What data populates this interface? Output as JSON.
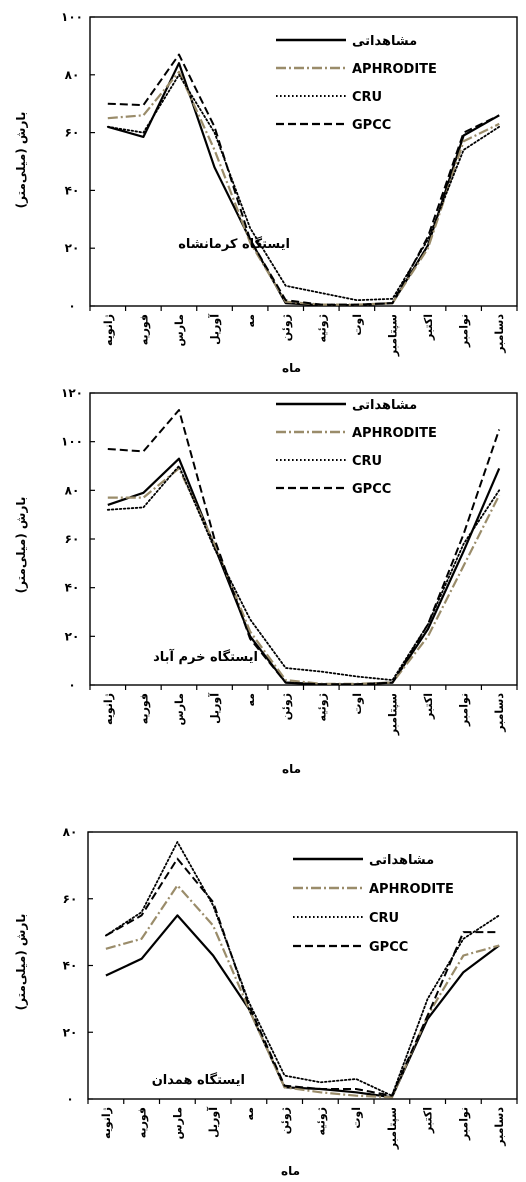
{
  "chart_data": [
    {
      "type": "line",
      "title": "ایستگاه کرمانشاه",
      "xlabel": "ماه",
      "ylabel": "بارش (میلی‌متر)",
      "categories": [
        "ژانویه",
        "فوریه",
        "مارس",
        "آوریل",
        "مه",
        "ژوئن",
        "ژوئیه",
        "اوت",
        "سپتامبر",
        "اکتبر",
        "نوامبر",
        "دسامبر"
      ],
      "ylim": [
        0,
        100
      ],
      "yticks": [
        0,
        20,
        40,
        60,
        80,
        100
      ],
      "ytick_labels": [
        "۰",
        "۲۰",
        "۴۰",
        "۶۰",
        "۸۰",
        "۱۰۰"
      ],
      "legend_position": "top-right",
      "series": [
        {
          "name": "مشاهداتی",
          "style": "solid",
          "color": "#000000",
          "values": [
            62,
            58.5,
            84,
            48,
            23,
            1,
            0.3,
            0.3,
            1,
            21,
            59,
            66
          ]
        },
        {
          "name": "APHRODITE",
          "style": "dashdot",
          "color": "#9a8c6a",
          "values": [
            65,
            66,
            81,
            54,
            22,
            1.5,
            0.5,
            0.5,
            1,
            20,
            57,
            63
          ]
        },
        {
          "name": "CRU",
          "style": "dotted",
          "color": "#000000",
          "values": [
            62,
            60,
            80,
            60,
            27,
            7,
            4.5,
            2,
            2.5,
            23,
            54,
            62
          ]
        },
        {
          "name": "GPCC",
          "style": "dashed",
          "color": "#000000",
          "values": [
            70,
            69.5,
            87,
            62,
            23,
            2,
            0.5,
            0.5,
            1,
            24,
            60,
            66
          ]
        }
      ]
    },
    {
      "type": "line",
      "title": "ایستگاه خرم آباد",
      "xlabel": "ماه",
      "ylabel": "بارش (میلی‌متر)",
      "categories": [
        "ژانویه",
        "فوریه",
        "مارس",
        "آوریل",
        "مه",
        "ژوئن",
        "ژوئیه",
        "اوت",
        "سپتامبر",
        "اکتبر",
        "نوامبر",
        "دسامبر"
      ],
      "ylim": [
        0,
        120
      ],
      "yticks": [
        0,
        20,
        40,
        60,
        80,
        100,
        120
      ],
      "ytick_labels": [
        "۰",
        "۲۰",
        "۴۰",
        "۶۰",
        "۸۰",
        "۱۰۰",
        "۱۲۰"
      ],
      "legend_position": "top-right",
      "series": [
        {
          "name": "مشاهداتی",
          "style": "solid",
          "color": "#000000",
          "values": [
            74,
            79,
            93,
            57,
            20,
            1,
            0.3,
            0.3,
            1,
            23,
            55,
            89
          ]
        },
        {
          "name": "APHRODITE",
          "style": "dashdot",
          "color": "#9a8c6a",
          "values": [
            77,
            77,
            89,
            58,
            22,
            2,
            0.5,
            0.5,
            1,
            20,
            49,
            78
          ]
        },
        {
          "name": "CRU",
          "style": "dotted",
          "color": "#000000",
          "values": [
            72,
            73,
            90,
            56,
            27,
            7,
            5.5,
            3.5,
            2,
            25,
            58,
            80
          ]
        },
        {
          "name": "GPCC",
          "style": "dashed",
          "color": "#000000",
          "values": [
            97,
            96,
            113,
            60,
            19,
            1,
            0.3,
            0.3,
            1,
            25,
            62,
            105
          ]
        }
      ]
    },
    {
      "type": "line",
      "title": "ایستگاه همدان",
      "xlabel": "ماه",
      "ylabel": "بارش (میلی‌متر)",
      "categories": [
        "ژانویه",
        "فوریه",
        "مارس",
        "آوریل",
        "مه",
        "ژوئن",
        "ژوئیه",
        "اوت",
        "سپتامبر",
        "اکتبر",
        "نوامبر",
        "دسامبر"
      ],
      "ylim": [
        0,
        80
      ],
      "yticks": [
        0,
        20,
        40,
        60,
        80
      ],
      "ytick_labels": [
        "۰",
        "۲۰",
        "۴۰",
        "۶۰",
        "۸۰"
      ],
      "legend_position": "top-right",
      "series": [
        {
          "name": "مشاهداتی",
          "style": "solid",
          "color": "#000000",
          "values": [
            37,
            42,
            55,
            43,
            27,
            3.5,
            3,
            2,
            0.5,
            24,
            38,
            46
          ]
        },
        {
          "name": "APHRODITE",
          "style": "dashdot",
          "color": "#9a8c6a",
          "values": [
            45,
            48,
            64,
            52,
            27,
            3.5,
            2,
            1,
            0.5,
            25,
            43,
            46
          ]
        },
        {
          "name": "CRU",
          "style": "dotted",
          "color": "#000000",
          "values": [
            49,
            56,
            77,
            58,
            29,
            7,
            5,
            6,
            1,
            30,
            48,
            55
          ]
        },
        {
          "name": "GPCC",
          "style": "dashed",
          "color": "#000000",
          "values": [
            49,
            55,
            72,
            59,
            28,
            4,
            3,
            3,
            1,
            25,
            50,
            50
          ]
        }
      ]
    }
  ]
}
